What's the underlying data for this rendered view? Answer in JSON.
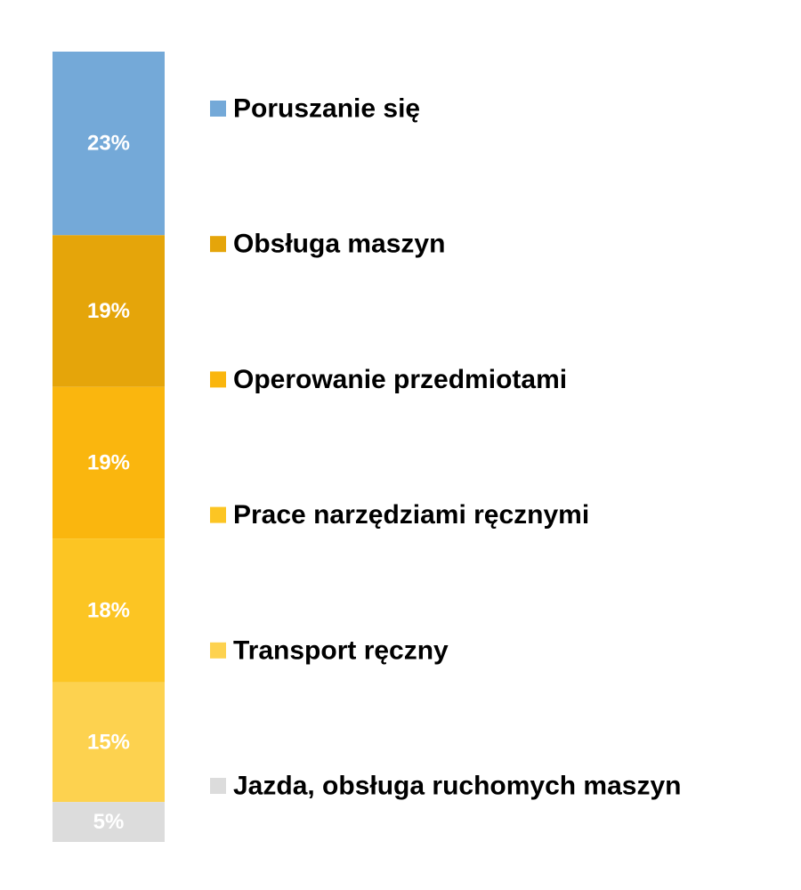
{
  "chart_data": {
    "type": "bar",
    "stacked": true,
    "orientation": "vertical",
    "categories": [
      ""
    ],
    "series": [
      {
        "name": "Poruszanie się",
        "values": [
          23
        ],
        "label": "23%",
        "color": "#74A9D8"
      },
      {
        "name": "Obsługa maszyn",
        "values": [
          19
        ],
        "label": "19%",
        "color": "#E5A50A"
      },
      {
        "name": "Operowanie przedmiotami",
        "values": [
          19
        ],
        "label": "19%",
        "color": "#FAB60E"
      },
      {
        "name": "Prace narzędziami ręcznymi",
        "values": [
          18
        ],
        "label": "18%",
        "color": "#FCC523"
      },
      {
        "name": "Transport ręczny",
        "values": [
          15
        ],
        "label": "15%",
        "color": "#FDD24F"
      },
      {
        "name": "Jazda, obsługa ruchomych maszyn",
        "values": [
          5
        ],
        "label": "5%",
        "color": "#DCDCDC"
      }
    ],
    "legend_placement": "right",
    "grid": false
  }
}
